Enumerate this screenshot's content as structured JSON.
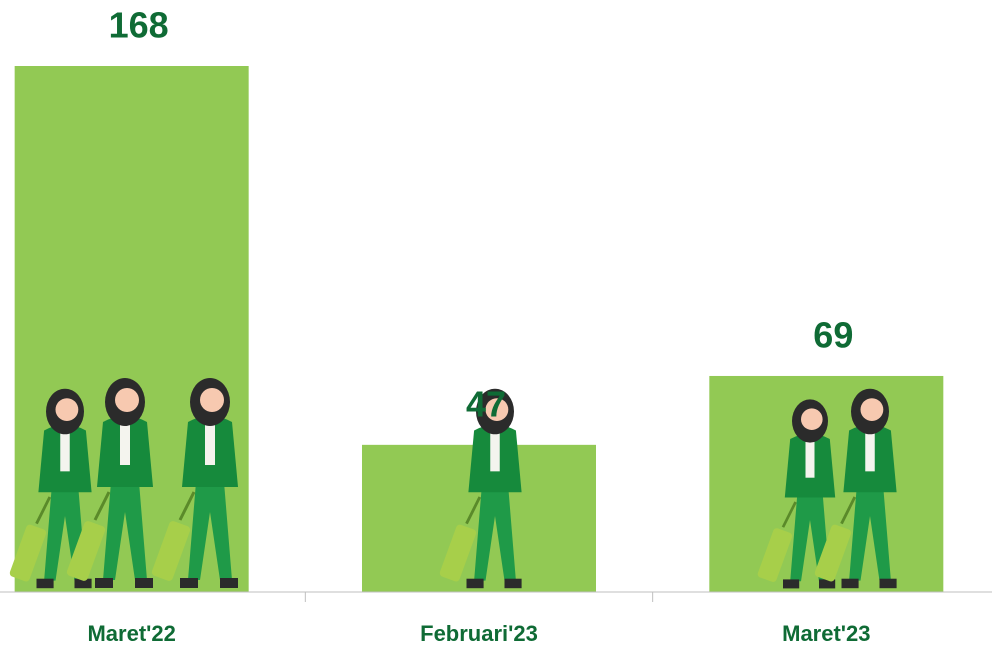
{
  "chart_data": {
    "type": "bar",
    "categories": [
      "Maret'22",
      "Februari'23",
      "Maret'23"
    ],
    "values": [
      168,
      47,
      69
    ],
    "color": "#92c954"
  }
}
